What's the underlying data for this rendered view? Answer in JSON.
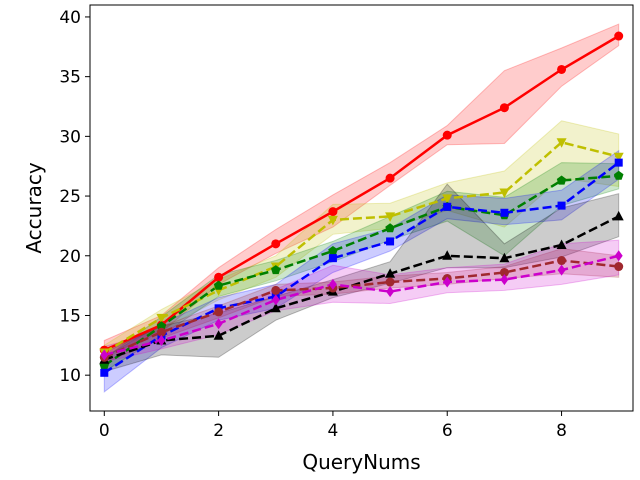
{
  "chart_data": {
    "type": "line",
    "title": "",
    "xlabel": "QueryNums",
    "ylabel": "Accuracy",
    "xlim": [
      -0.25,
      9.25
    ],
    "ylim": [
      7,
      41
    ],
    "xticks": [
      0,
      2,
      4,
      6,
      8
    ],
    "yticks": [
      10,
      15,
      20,
      25,
      30,
      35,
      40
    ],
    "grid": false,
    "legend": "none",
    "x": [
      0,
      1,
      2,
      3,
      4,
      5,
      6,
      7,
      8,
      9
    ],
    "series": [
      {
        "color": "#ff0000",
        "linestyle": "solid",
        "marker": "circle",
        "values": [
          12.1,
          14.2,
          18.2,
          21.0,
          23.7,
          26.5,
          30.1,
          32.4,
          35.6,
          38.4
        ],
        "lower": [
          11.6,
          13.6,
          17.6,
          20.2,
          22.4,
          25.9,
          29.3,
          29.4,
          34.2,
          37.6
        ],
        "upper": [
          12.9,
          15.0,
          19.0,
          22.2,
          25.1,
          27.8,
          30.9,
          35.5,
          37.4,
          39.4
        ]
      },
      {
        "color": "#bfbf00",
        "linestyle": "dashed",
        "marker": "triangle-down",
        "values": [
          11.9,
          14.8,
          17.1,
          19.1,
          23.0,
          23.3,
          24.8,
          25.3,
          29.5,
          28.3
        ],
        "lower": [
          11.4,
          13.8,
          16.3,
          18.2,
          21.8,
          22.3,
          23.8,
          22.4,
          26.5,
          25.8
        ],
        "upper": [
          12.5,
          15.5,
          18.0,
          20.0,
          24.3,
          24.4,
          26.1,
          27.1,
          31.3,
          30.2
        ]
      },
      {
        "color": "#008000",
        "linestyle": "dashed",
        "marker": "pentagon",
        "values": [
          10.8,
          14.1,
          17.5,
          18.8,
          20.4,
          22.3,
          24.1,
          23.4,
          26.3,
          26.7
        ],
        "lower": [
          10.3,
          13.3,
          16.6,
          17.9,
          19.5,
          21.3,
          22.9,
          20.0,
          24.2,
          25.6
        ],
        "upper": [
          11.4,
          14.9,
          18.4,
          19.6,
          21.2,
          23.3,
          25.4,
          24.9,
          27.8,
          27.7
        ]
      },
      {
        "color": "#0000ff",
        "linestyle": "dashed",
        "marker": "square",
        "values": [
          10.2,
          13.3,
          15.6,
          16.6,
          19.8,
          21.2,
          24.1,
          23.6,
          24.2,
          27.8
        ],
        "lower": [
          8.6,
          12.3,
          14.6,
          15.6,
          18.6,
          20.4,
          23.1,
          22.6,
          23.0,
          26.4
        ],
        "upper": [
          11.5,
          14.3,
          16.5,
          17.6,
          21.0,
          22.3,
          25.1,
          24.8,
          25.5,
          28.8
        ]
      },
      {
        "color": "#000000",
        "linestyle": "dashed",
        "marker": "triangle-up",
        "values": [
          11.3,
          12.9,
          13.3,
          15.6,
          17.0,
          18.5,
          20.0,
          19.8,
          20.9,
          23.3
        ],
        "lower": [
          10.3,
          11.7,
          11.5,
          14.6,
          16.5,
          17.7,
          19.0,
          19.0,
          19.9,
          21.6
        ],
        "upper": [
          11.9,
          14.1,
          15.2,
          16.6,
          18.0,
          19.5,
          26.0,
          21.0,
          24.0,
          25.2
        ]
      },
      {
        "color": "#a0282f",
        "linestyle": "dashed",
        "marker": "circle",
        "values": [
          11.5,
          13.6,
          15.3,
          17.1,
          17.3,
          17.8,
          18.1,
          18.6,
          19.6,
          19.1
        ],
        "lower": [
          11.0,
          13.1,
          14.8,
          16.6,
          16.8,
          17.3,
          17.6,
          18.1,
          18.5,
          18.2
        ],
        "upper": [
          12.0,
          14.1,
          15.8,
          17.6,
          17.8,
          18.3,
          18.6,
          19.1,
          20.6,
          20.0
        ]
      },
      {
        "color": "#cc00cc",
        "linestyle": "dashed",
        "marker": "diamond",
        "values": [
          11.7,
          12.9,
          14.3,
          16.3,
          17.6,
          17.0,
          17.8,
          18.0,
          18.8,
          20.0
        ],
        "lower": [
          11.1,
          12.2,
          13.4,
          15.4,
          16.1,
          16.0,
          16.9,
          17.1,
          17.6,
          18.4
        ],
        "upper": [
          12.4,
          13.7,
          15.3,
          17.2,
          19.2,
          18.4,
          19.0,
          19.3,
          21.0,
          21.3
        ]
      }
    ]
  }
}
